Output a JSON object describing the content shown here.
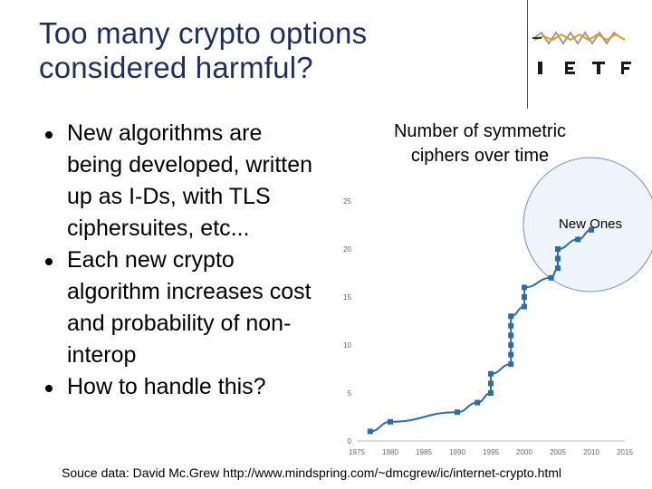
{
  "slide": {
    "title_lines": [
      "Too many crypto options",
      "considered harmful?"
    ],
    "bullets": [
      "New algorithms are being developed, written up as I-Ds, with TLS ciphersuites, etc...",
      "Each new crypto algorithm increases cost and probability of non-interop",
      "How to handle this?"
    ],
    "chart_title_lines": [
      "Number of symmetric",
      "ciphers over time"
    ],
    "caption": "Souce data: David Mc.Grew http://www.mindspring.com/~dmcgrew/ic/internet-crypto.html",
    "logo_text": "IETF",
    "colors": {
      "title": "#1f2f5c",
      "series": "#2e6ca4",
      "highlight_fill": "#eef5fc",
      "highlight_stroke": "#7090b8"
    }
  },
  "chart_data": {
    "type": "line",
    "title": "Number of symmetric ciphers over time",
    "xlabel": "",
    "ylabel": "",
    "xlim": [
      1975,
      2015
    ],
    "ylim": [
      0,
      25
    ],
    "x_ticks": [
      1975,
      1980,
      1985,
      1990,
      1995,
      2000,
      2005,
      2010,
      2015
    ],
    "y_ticks": [
      0,
      5,
      10,
      15,
      20,
      25
    ],
    "grid": false,
    "annotations": [
      {
        "text": "New Ones",
        "x": 2008,
        "y": 22
      }
    ],
    "series": [
      {
        "x": [
          1977,
          1980,
          1990,
          1993,
          1995,
          1995,
          1995,
          1998,
          1998,
          1998,
          1998,
          1998,
          1998,
          2000,
          2000,
          2000,
          2004,
          2005,
          2005,
          2005,
          2008,
          2010
        ],
        "y": [
          1,
          2,
          3,
          4,
          5,
          6,
          7,
          8,
          9,
          10,
          11,
          12,
          13,
          14,
          15,
          16,
          17,
          18,
          19,
          20,
          21,
          22
        ]
      }
    ]
  }
}
